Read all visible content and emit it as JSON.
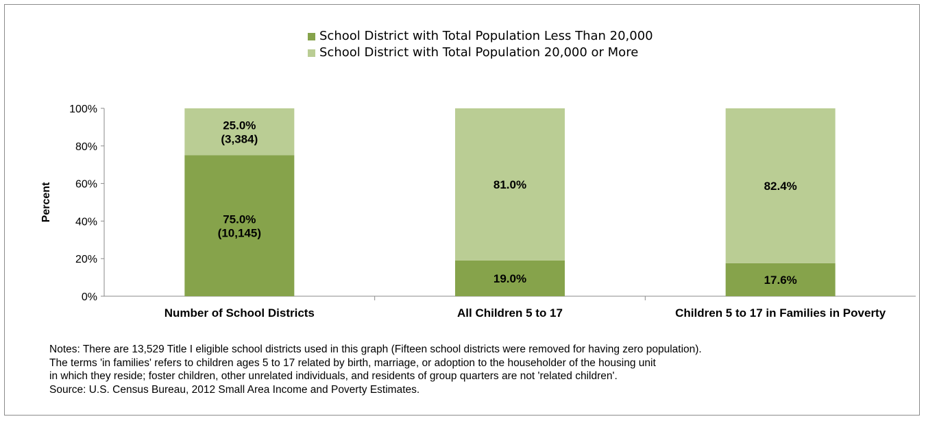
{
  "chart_data": {
    "type": "bar",
    "stacked": true,
    "ylabel": "Percent",
    "ylim": [
      0,
      100
    ],
    "yticks": [
      0,
      20,
      40,
      60,
      80,
      100
    ],
    "ytick_labels": [
      "0%",
      "20%",
      "40%",
      "60%",
      "80%",
      "100%"
    ],
    "categories": [
      "Number of School Districts",
      "All Children 5 to 17",
      "Children 5 to 17 in Families in Poverty"
    ],
    "series": [
      {
        "name": "School District with Total Population Less Than 20,000",
        "color": "#86a34b",
        "values": [
          75.0,
          19.0,
          17.6
        ],
        "labels": [
          [
            "75.0%",
            "(10,145)"
          ],
          [
            "19.0%"
          ],
          [
            "17.6%"
          ]
        ]
      },
      {
        "name": "School District with Total Population 20,000 or More",
        "color": "#bacd94",
        "values": [
          25.0,
          81.0,
          82.4
        ],
        "labels": [
          [
            "25.0%",
            "(3,384)"
          ],
          [
            "81.0%"
          ],
          [
            "82.4%"
          ]
        ]
      }
    ],
    "legend_position": "top",
    "grid": false
  },
  "notes": [
    "Notes:  There are 13,529 Title I eligible school districts used in this graph (Fifteen school districts were removed for having zero population).",
    "The terms 'in families' refers to children ages 5 to 17 related by birth, marriage, or adoption to the householder of the housing unit",
    "in which they reside; foster children, other  unrelated individuals, and residents of group quarters are not 'related children'.",
    "Source:  U.S. Census Bureau, 2012 Small Area Income and Poverty Estimates."
  ]
}
